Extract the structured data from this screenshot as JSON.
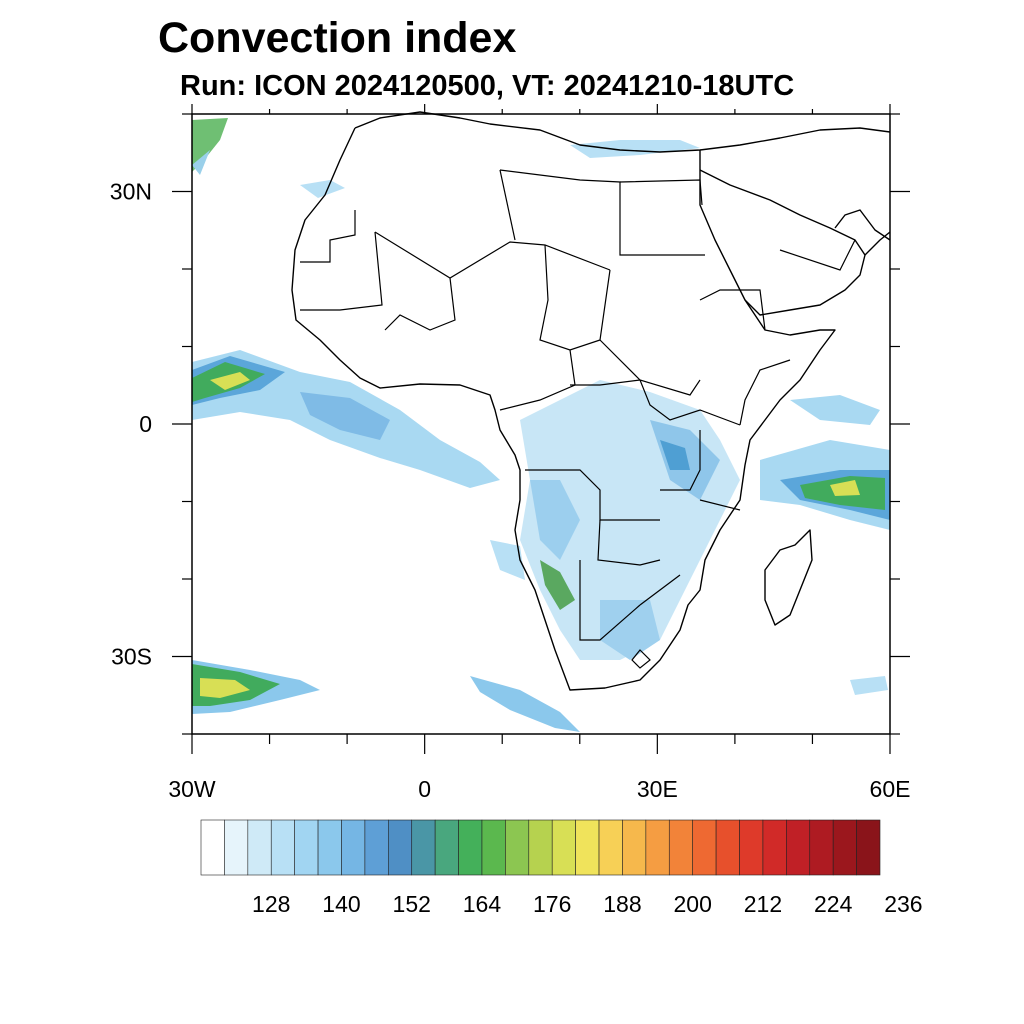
{
  "title": "Convection index",
  "subtitle": "Run: ICON 2024120500,  VT: 20241210-18UTC",
  "map": {
    "lon_range": [
      -30,
      60
    ],
    "lat_range": [
      -40,
      40
    ],
    "lon_ticks": [
      {
        "value": -30,
        "label": "30W"
      },
      {
        "value": 0,
        "label": "0"
      },
      {
        "value": 30,
        "label": "30E"
      },
      {
        "value": 60,
        "label": "60E"
      }
    ],
    "lat_ticks": [
      {
        "value": 30,
        "label": "30N"
      },
      {
        "value": 0,
        "label": "0"
      },
      {
        "value": -30,
        "label": "30S"
      }
    ]
  },
  "colorbar": {
    "colors": [
      "#ffffff",
      "#e6f4fb",
      "#cfeaf7",
      "#b8e0f5",
      "#a1d5f2",
      "#8bc8ec",
      "#75b6e4",
      "#5e9fd6",
      "#4f8fc5",
      "#4a96a6",
      "#49a77e",
      "#44b05a",
      "#5bb84e",
      "#8cc651",
      "#b6d24f",
      "#d8df55",
      "#f0e35b",
      "#f7d056",
      "#f6b84c",
      "#f59d42",
      "#f28339",
      "#ee6932",
      "#e7502c",
      "#de3a2a",
      "#d12a28",
      "#c02026",
      "#ae1b22",
      "#9b171d",
      "#8a141a"
    ],
    "labels": [
      "128",
      "140",
      "152",
      "164",
      "176",
      "188",
      "200",
      "212",
      "224",
      "236"
    ]
  }
}
